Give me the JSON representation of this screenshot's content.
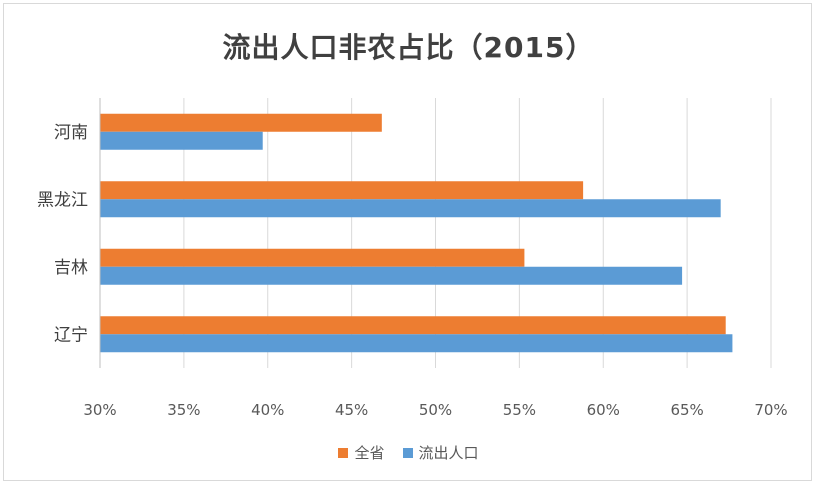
{
  "chart_data": {
    "type": "bar",
    "orientation": "horizontal",
    "title": "流出人口非农占比（2015）",
    "categories": [
      "河南",
      "黑龙江",
      "吉林",
      "辽宁"
    ],
    "series": [
      {
        "name": "全省",
        "color": "#ED7D31",
        "values": [
          0.468,
          0.588,
          0.553,
          0.673
        ]
      },
      {
        "name": "流出人口",
        "color": "#5B9BD5",
        "values": [
          0.397,
          0.67,
          0.647,
          0.677
        ]
      }
    ],
    "xlim": [
      0.3,
      0.7
    ],
    "x_ticks": [
      "30%",
      "35%",
      "40%",
      "45%",
      "50%",
      "55%",
      "60%",
      "65%",
      "70%"
    ],
    "grid": "vertical",
    "legend_position": "bottom"
  }
}
